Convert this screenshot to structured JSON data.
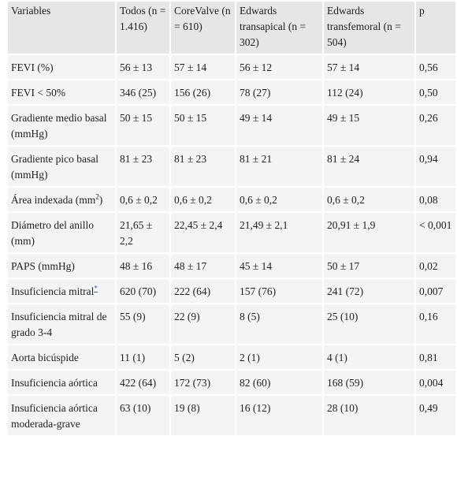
{
  "table": {
    "header": [
      "Variables",
      "Todos (n = 1.416)",
      "CoreValve (n = 610)",
      "Edwards transapical (n = 302)",
      "Edwards transfemoral (n = 504)",
      "p"
    ],
    "rows": [
      [
        "FEVI (%)",
        "56 ± 13",
        "57 ± 14",
        "56 ± 12",
        "57 ± 14",
        "0,56"
      ],
      [
        "FEVI < 50%",
        "346 (25)",
        "156 (26)",
        "78 (27)",
        "112 (24)",
        "0,50"
      ],
      [
        "Gradiente medio basal (mmHg)",
        "50 ± 15",
        "50 ± 15",
        "49 ± 14",
        "49 ± 15",
        "0,26"
      ],
      [
        "Gradiente pico basal (mmHg)",
        "81 ± 23",
        "81 ± 23",
        "81 ± 21",
        "81 ± 24",
        "0,94"
      ],
      [
        {
          "text": "Área indexada (mm",
          "sup": "2",
          "after": ")"
        },
        "0,6 ± 0,2",
        "0,6 ± 0,2",
        "0,6 ± 0,2",
        "0,6 ± 0,2",
        "0,08"
      ],
      [
        "Diámetro del anillo (mm)",
        "21,65 ± 2,2",
        "22,45 ± 2,4",
        "21,49 ± 2,1",
        "20,91 ± 1,9",
        "< 0,001"
      ],
      [
        "PAPS (mmHg)",
        "48 ± 16",
        "48 ± 17",
        "45 ± 14",
        "50 ± 17",
        "0,02"
      ],
      [
        {
          "text": "Insuficiencia mitral",
          "note": "*"
        },
        "620 (70)",
        "222 (64)",
        "157 (76)",
        "241 (72)",
        "0,007"
      ],
      [
        "Insuficiencia mitral de grado 3-4",
        "55 (9)",
        "22 (9)",
        "8 (5)",
        "25 (10)",
        "0,16"
      ],
      [
        "Aorta bicúspide",
        "11 (1)",
        "5 (2)",
        "2 (1)",
        "4 (1)",
        "0,81"
      ],
      [
        "Insuficiencia aórtica",
        "422 (64)",
        "172 (73)",
        "82 (60)",
        "168 (59)",
        "0,004"
      ],
      [
        "Insuficiencia aórtica moderada-grave",
        "63 (10)",
        "19 (8)",
        "16 (12)",
        "28 (10)",
        "0,49"
      ]
    ]
  }
}
